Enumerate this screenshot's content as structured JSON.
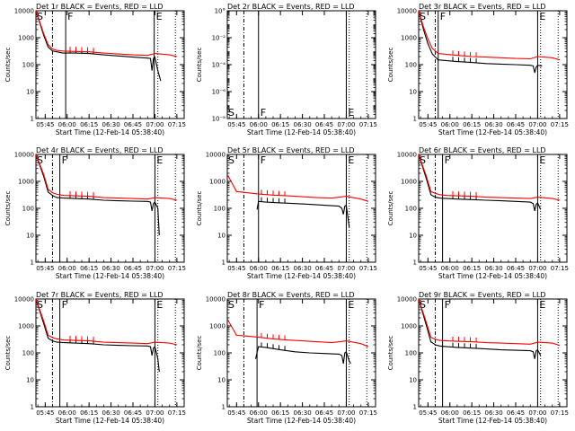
{
  "figure": {
    "panel_title_suffix": " BLACK = Events, RED = LLD",
    "ylabel": "Counts/sec",
    "xlabel": "Start Time (12-Feb-14 05:38:40)",
    "x_tick_labels": [
      "05:45",
      "06:00",
      "06:15",
      "06:30",
      "06:45",
      "07:00",
      "07:15"
    ],
    "y_tick_labels_log": [
      "1",
      "10",
      "100",
      "1000",
      "10000"
    ],
    "y_tick_labels_det2": [
      "10°",
      "10⁻²",
      "10⁻⁴",
      "10⁻⁶",
      "10⁻⁸"
    ],
    "marker_labels": [
      "S",
      "F",
      "E"
    ],
    "colors": {
      "events": "#000000",
      "lld": "#ff0000",
      "background": "#ffffff"
    }
  },
  "chart_data": [
    {
      "type": "line",
      "title": "Det 1r",
      "yscale": "log",
      "ylim": [
        1,
        10000
      ],
      "xlim": [
        "05:38:40",
        "07:20"
      ],
      "markers": {
        "S": "05:38:40",
        "F": "05:59",
        "E": "06:59:30"
      },
      "series": [
        {
          "name": "BLACK = Events",
          "x": [
            "05:38:40",
            "05:44",
            "05:47",
            "05:50",
            "05:53",
            "05:57",
            "06:05",
            "06:15",
            "06:25",
            "06:35",
            "06:45",
            "06:55",
            "06:57",
            "06:58",
            "06:59",
            "07:00",
            "07:02",
            "07:04"
          ],
          "y": [
            10000,
            1200,
            450,
            320,
            300,
            270,
            270,
            260,
            230,
            210,
            190,
            175,
            170,
            60,
            170,
            190,
            60,
            25
          ]
        },
        {
          "name": "RED = LLD",
          "x": [
            "05:38:40",
            "05:44",
            "05:47",
            "05:50",
            "05:53",
            "05:57",
            "06:05",
            "06:15",
            "06:25",
            "06:35",
            "06:45",
            "06:55",
            "07:00",
            "07:10",
            "07:15"
          ],
          "y": [
            10000,
            1400,
            550,
            380,
            340,
            320,
            310,
            300,
            270,
            250,
            230,
            220,
            260,
            230,
            200
          ]
        }
      ]
    },
    {
      "type": "line",
      "title": "Det 2r",
      "yscale": "log",
      "ylim": [
        1e-08,
        1
      ],
      "xlim": [
        "05:38:40",
        "07:20"
      ],
      "markers": {
        "S": "05:38:40",
        "F": "06:00",
        "E": "07:00"
      },
      "series": []
    },
    {
      "type": "line",
      "title": "Det 3r",
      "yscale": "log",
      "ylim": [
        1,
        10000
      ],
      "xlim": [
        "05:38:40",
        "07:20"
      ],
      "markers": {
        "S": "05:38:40",
        "F": "05:52",
        "E": "07:00"
      },
      "series": [
        {
          "name": "BLACK = Events",
          "x": [
            "05:38:40",
            "05:42",
            "05:45",
            "05:48",
            "05:52",
            "05:58",
            "06:05",
            "06:15",
            "06:25",
            "06:35",
            "06:45",
            "06:55",
            "06:57",
            "06:58",
            "06:59",
            "07:00",
            "07:03"
          ],
          "y": [
            10000,
            2000,
            600,
            250,
            150,
            140,
            130,
            120,
            110,
            105,
            100,
            95,
            90,
            50,
            80,
            95,
            90
          ]
        },
        {
          "name": "RED = LLD",
          "x": [
            "05:38:40",
            "05:42",
            "05:45",
            "05:48",
            "05:52",
            "05:58",
            "06:05",
            "06:15",
            "06:25",
            "06:35",
            "06:45",
            "06:55",
            "07:00",
            "07:10",
            "07:15"
          ],
          "y": [
            10000,
            2500,
            900,
            400,
            260,
            240,
            220,
            200,
            190,
            180,
            170,
            165,
            200,
            180,
            150
          ]
        }
      ]
    },
    {
      "type": "line",
      "title": "Det 4r",
      "yscale": "log",
      "ylim": [
        1,
        10000
      ],
      "xlim": [
        "05:38:40",
        "07:20"
      ],
      "markers": {
        "S": "05:38:40",
        "F": "05:55",
        "E": "07:00"
      },
      "series": [
        {
          "name": "BLACK = Events",
          "x": [
            "05:38:40",
            "05:44",
            "05:47",
            "05:50",
            "05:53",
            "05:58",
            "06:05",
            "06:15",
            "06:25",
            "06:35",
            "06:45",
            "06:55",
            "06:57",
            "06:58",
            "06:59",
            "07:00",
            "07:02",
            "07:03"
          ],
          "y": [
            10000,
            1500,
            400,
            300,
            250,
            240,
            230,
            220,
            200,
            190,
            185,
            180,
            170,
            80,
            150,
            170,
            100,
            10
          ]
        },
        {
          "name": "RED = LLD",
          "x": [
            "05:38:40",
            "05:44",
            "05:47",
            "05:50",
            "05:53",
            "05:58",
            "06:05",
            "06:15",
            "06:25",
            "06:35",
            "06:45",
            "06:55",
            "07:00",
            "07:10",
            "07:15"
          ],
          "y": [
            10000,
            1800,
            500,
            380,
            330,
            300,
            290,
            280,
            250,
            240,
            230,
            220,
            250,
            230,
            200
          ]
        }
      ]
    },
    {
      "type": "line",
      "title": "Det 5r",
      "yscale": "log",
      "ylim": [
        1,
        10000
      ],
      "xlim": [
        "05:38:40",
        "07:20"
      ],
      "markers": {
        "S": "05:38:40",
        "F": "06:00",
        "E": "07:00"
      },
      "series": [
        {
          "name": "BLACK = Events",
          "x": [
            "05:59",
            "06:00",
            "06:05",
            "06:15",
            "06:25",
            "06:35",
            "06:45",
            "06:55",
            "06:57",
            "06:58",
            "06:59",
            "07:00",
            "07:02"
          ],
          "y": [
            90,
            180,
            170,
            160,
            150,
            140,
            130,
            120,
            100,
            60,
            120,
            130,
            20
          ]
        },
        {
          "name": "RED = LLD",
          "x": [
            "05:38:40",
            "05:45",
            "05:52",
            "06:00",
            "06:10",
            "06:20",
            "06:30",
            "06:40",
            "06:50",
            "07:00",
            "07:10",
            "07:15"
          ],
          "y": [
            1800,
            420,
            380,
            340,
            310,
            290,
            270,
            250,
            240,
            280,
            220,
            180
          ]
        }
      ]
    },
    {
      "type": "line",
      "title": "Det 6r",
      "yscale": "log",
      "ylim": [
        1,
        10000
      ],
      "xlim": [
        "05:38:40",
        "07:20"
      ],
      "markers": {
        "S": "05:38:40",
        "F": "05:55",
        "E": "07:00"
      },
      "series": [
        {
          "name": "BLACK = Events",
          "x": [
            "05:38:40",
            "05:44",
            "05:47",
            "05:50",
            "05:53",
            "05:58",
            "06:05",
            "06:15",
            "06:25",
            "06:35",
            "06:45",
            "06:55",
            "06:57",
            "06:58",
            "06:59",
            "07:00",
            "07:02"
          ],
          "y": [
            10000,
            1200,
            320,
            260,
            240,
            230,
            220,
            210,
            200,
            190,
            180,
            170,
            150,
            80,
            140,
            160,
            90
          ]
        },
        {
          "name": "RED = LLD",
          "x": [
            "05:38:40",
            "05:44",
            "05:47",
            "05:50",
            "05:53",
            "05:58",
            "06:05",
            "06:15",
            "06:25",
            "06:35",
            "06:45",
            "06:55",
            "07:00",
            "07:10",
            "07:15"
          ],
          "y": [
            10000,
            1500,
            420,
            360,
            320,
            300,
            290,
            280,
            260,
            250,
            240,
            230,
            260,
            230,
            200
          ]
        }
      ]
    },
    {
      "type": "line",
      "title": "Det 7r",
      "yscale": "log",
      "ylim": [
        1,
        10000
      ],
      "xlim": [
        "05:38:40",
        "07:20"
      ],
      "markers": {
        "S": "05:38:40",
        "F": "05:55",
        "E": "07:00"
      },
      "series": [
        {
          "name": "BLACK = Events",
          "x": [
            "05:38:40",
            "05:44",
            "05:47",
            "05:50",
            "05:53",
            "05:58",
            "06:05",
            "06:15",
            "06:25",
            "06:35",
            "06:45",
            "06:55",
            "06:57",
            "06:58",
            "06:59",
            "07:00",
            "07:02",
            "07:03"
          ],
          "y": [
            10000,
            1200,
            350,
            280,
            250,
            240,
            230,
            220,
            200,
            190,
            185,
            180,
            170,
            80,
            150,
            170,
            60,
            20
          ]
        },
        {
          "name": "RED = LLD",
          "x": [
            "05:38:40",
            "05:44",
            "05:47",
            "05:50",
            "05:53",
            "05:58",
            "06:05",
            "06:15",
            "06:25",
            "06:35",
            "06:45",
            "06:55",
            "07:00",
            "07:10",
            "07:15"
          ],
          "y": [
            10000,
            1500,
            450,
            370,
            330,
            300,
            290,
            280,
            250,
            240,
            230,
            220,
            250,
            230,
            200
          ]
        }
      ]
    },
    {
      "type": "line",
      "title": "Det 8r",
      "yscale": "log",
      "ylim": [
        1,
        10000
      ],
      "xlim": [
        "05:38:40",
        "07:20"
      ],
      "markers": {
        "S": "05:38:40",
        "F": "05:59",
        "E": "07:00"
      },
      "series": [
        {
          "name": "BLACK = Events",
          "x": [
            "05:58",
            "06:00",
            "06:05",
            "06:15",
            "06:25",
            "06:35",
            "06:45",
            "06:55",
            "06:57",
            "06:58",
            "06:59",
            "07:00",
            "07:02",
            "07:03"
          ],
          "y": [
            60,
            170,
            160,
            130,
            110,
            100,
            95,
            90,
            80,
            40,
            100,
            110,
            50,
            40
          ]
        },
        {
          "name": "RED = LLD",
          "x": [
            "05:38:40",
            "05:45",
            "05:52",
            "06:00",
            "06:10",
            "06:20",
            "06:30",
            "06:40",
            "06:50",
            "07:00",
            "07:10",
            "07:15"
          ],
          "y": [
            1800,
            450,
            420,
            380,
            330,
            300,
            280,
            260,
            240,
            280,
            220,
            170
          ]
        }
      ]
    },
    {
      "type": "line",
      "title": "Det 9r",
      "yscale": "log",
      "ylim": [
        1,
        10000
      ],
      "xlim": [
        "05:38:40",
        "07:20"
      ],
      "markers": {
        "S": "05:38:40",
        "F": "05:55",
        "E": "07:00"
      },
      "series": [
        {
          "name": "BLACK = Events",
          "x": [
            "05:38:40",
            "05:44",
            "05:47",
            "05:50",
            "05:53",
            "05:58",
            "06:05",
            "06:15",
            "06:25",
            "06:35",
            "06:45",
            "06:55",
            "06:57",
            "06:58",
            "06:59",
            "07:00",
            "07:02"
          ],
          "y": [
            10000,
            1000,
            260,
            200,
            180,
            170,
            160,
            150,
            140,
            130,
            125,
            120,
            110,
            60,
            120,
            130,
            80
          ]
        },
        {
          "name": "RED = LLD",
          "x": [
            "05:38:40",
            "05:44",
            "05:47",
            "05:50",
            "05:53",
            "05:58",
            "06:05",
            "06:15",
            "06:25",
            "06:35",
            "06:45",
            "06:55",
            "07:00",
            "07:10",
            "07:15"
          ],
          "y": [
            10000,
            1300,
            380,
            320,
            290,
            280,
            270,
            260,
            240,
            230,
            220,
            210,
            250,
            230,
            190
          ]
        }
      ]
    }
  ]
}
